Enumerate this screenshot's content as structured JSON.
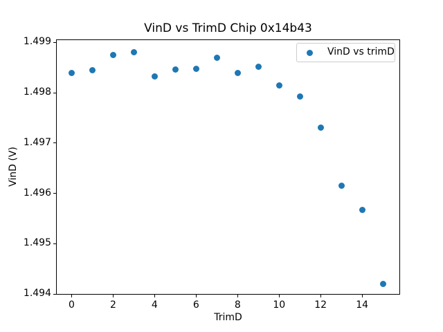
{
  "figure": {
    "background": "#ffffff"
  },
  "colors": {
    "marker": "#1f77b4",
    "spine": "#000000",
    "tick": "#000000",
    "text": "#000000",
    "legend_border": "#cccccc"
  },
  "legend": {
    "label": "VinD vs trimD",
    "marker_icon": "filled-circle"
  },
  "chart_data": {
    "type": "scatter",
    "title": "VinD vs TrimD Chip 0x14b43",
    "xlabel": "TrimD",
    "ylabel": "VinD (V)",
    "legend_entries": [
      "VinD vs trimD"
    ],
    "legend_position": "upper right",
    "grid": false,
    "marker_color": "#1f77b4",
    "x": [
      0,
      1,
      2,
      3,
      4,
      5,
      6,
      7,
      8,
      9,
      10,
      11,
      12,
      13,
      14,
      15
    ],
    "y": [
      1.4984,
      1.49845,
      1.49875,
      1.49881,
      1.49832,
      1.49846,
      1.49848,
      1.4987,
      1.4984,
      1.49852,
      1.49814,
      1.49792,
      1.49731,
      1.49616,
      1.49567,
      1.4942
    ],
    "series": [
      {
        "name": "VinD vs trimD",
        "x": [
          0,
          1,
          2,
          3,
          4,
          5,
          6,
          7,
          8,
          9,
          10,
          11,
          12,
          13,
          14,
          15
        ],
        "y": [
          1.4984,
          1.49845,
          1.49875,
          1.49881,
          1.49832,
          1.49846,
          1.49848,
          1.4987,
          1.4984,
          1.49852,
          1.49814,
          1.49792,
          1.49731,
          1.49616,
          1.49567,
          1.4942
        ]
      }
    ],
    "xlim": [
      -0.75,
      15.83
    ],
    "ylim": [
      1.49399,
      1.49906
    ],
    "xticks": [
      0,
      2,
      4,
      6,
      8,
      10,
      12,
      14
    ],
    "xtick_labels": [
      "0",
      "2",
      "4",
      "6",
      "8",
      "10",
      "12",
      "14"
    ],
    "yticks": [
      1.494,
      1.495,
      1.496,
      1.497,
      1.498,
      1.499
    ],
    "ytick_labels": [
      "1.494",
      "1.495",
      "1.496",
      "1.497",
      "1.498",
      "1.499"
    ]
  }
}
